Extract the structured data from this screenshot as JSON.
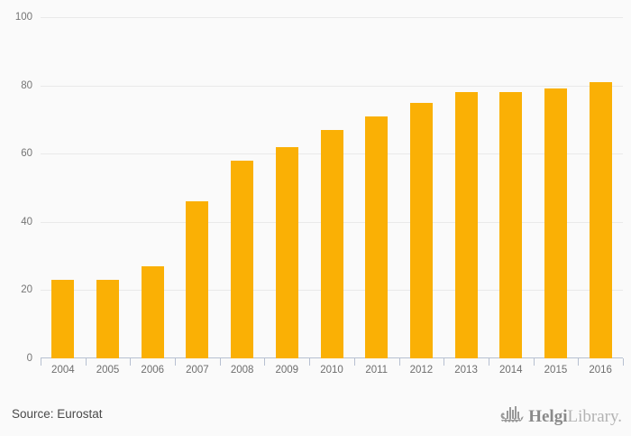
{
  "chart_data": {
    "type": "bar",
    "categories": [
      "2004",
      "2005",
      "2006",
      "2007",
      "2008",
      "2009",
      "2010",
      "2011",
      "2012",
      "2013",
      "2014",
      "2015",
      "2016"
    ],
    "values": [
      23,
      23,
      27,
      46,
      58,
      62,
      67,
      71,
      75,
      78,
      78,
      79,
      81
    ],
    "title": "",
    "xlabel": "",
    "ylabel": "",
    "ylim": [
      0,
      100
    ],
    "yticks": [
      0,
      20,
      40,
      60,
      80,
      100
    ],
    "grid": true,
    "legend": false
  },
  "footer": {
    "source_label": "Source: Eurostat",
    "logo": {
      "brand_bold": "Helgi",
      "brand_light": "Library.",
      "icon": "viking-ship-bar-chart-icon"
    }
  },
  "colors": {
    "background": "#fafafa",
    "gridline": "#e9e9e9",
    "axis": "#b7c0d1",
    "bar": "#FAB005",
    "y_tick_label": "#757575",
    "x_tick_label": "#6e6e6e",
    "source_text": "#4a4a4a",
    "logo_bold": "#8a8a8a",
    "logo_light": "#b3b3b3",
    "logo_icon": "#999999"
  }
}
